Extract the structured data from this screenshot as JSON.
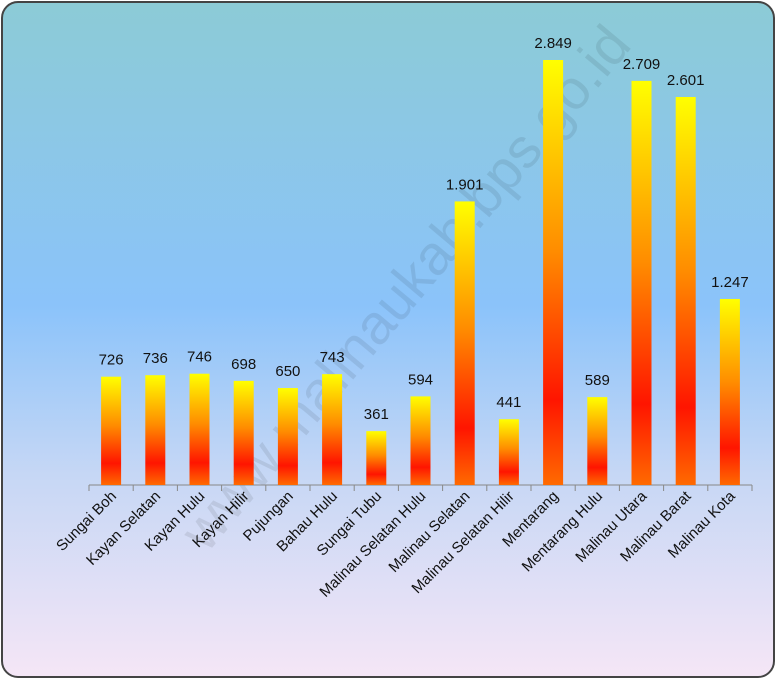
{
  "chart_data": {
    "type": "bar",
    "watermark": "www.malinaukab.bps.go.id",
    "categories": [
      "Sungai Boh",
      "Kayan Selatan",
      "Kayan Hulu",
      "Kayan Hilir",
      "Pujungan",
      "Bahau Hulu",
      "Sungai Tubu",
      "Malinau Selatan Hulu",
      "Malinau Selatan",
      "Malinau Selatan Hilir",
      "Mentarang",
      "Mentarang Hulu",
      "Malinau Utara",
      "Malinau Barat",
      "Malinau Kota"
    ],
    "values": [
      726,
      736,
      746,
      698,
      650,
      743,
      361,
      594,
      1901,
      441,
      2849,
      589,
      2709,
      2601,
      1247
    ],
    "value_labels": [
      "726",
      "736",
      "746",
      "698",
      "650",
      "743",
      "361",
      "594",
      "1.901",
      "441",
      "2.849",
      "589",
      "2.709",
      "2.601",
      "1.247"
    ],
    "colors": [
      "#ffff00",
      "#ff8c00",
      "#ff1500",
      "#ff6a00"
    ]
  }
}
